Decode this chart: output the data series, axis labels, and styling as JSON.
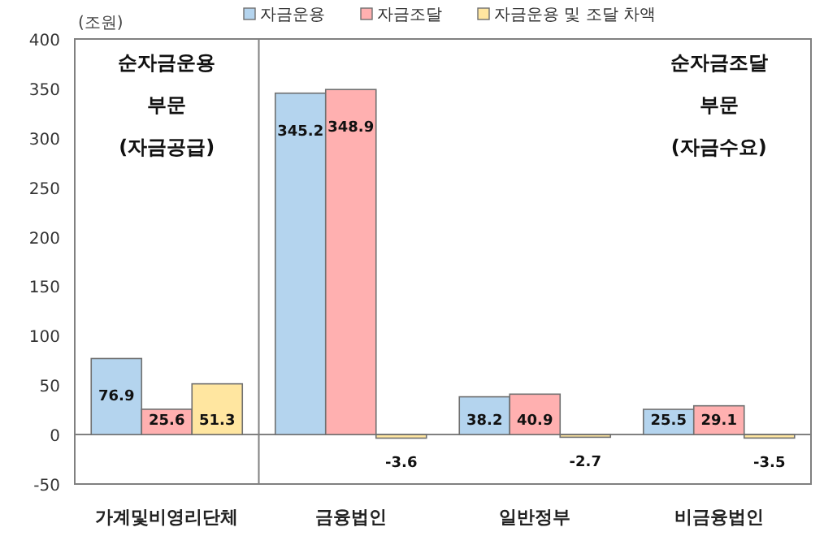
{
  "chart_data": {
    "type": "bar",
    "ylabel": "(조원)",
    "categories": [
      "가계및비영리단체",
      "금융법인",
      "일반정부",
      "비금융법인"
    ],
    "series": [
      {
        "name": "자금운용",
        "color": "#b4d4ee",
        "values": [
          76.9,
          345.2,
          38.2,
          25.5
        ]
      },
      {
        "name": "자금조달",
        "color": "#ffb0b0",
        "values": [
          25.6,
          348.9,
          40.9,
          29.1
        ]
      },
      {
        "name": "자금운용 및 조달 차액",
        "color": "#ffe6a0",
        "values": [
          51.3,
          -3.6,
          -2.7,
          -3.5
        ]
      }
    ],
    "ylim": [
      -50,
      400
    ],
    "yticks": [
      -50,
      0,
      50,
      100,
      150,
      200,
      250,
      300,
      350,
      400
    ],
    "data_labels": true,
    "legend": "top",
    "annotations": [
      "순자금운용\n부문\n(자금공급)",
      "순자금조달\n부문\n(자금수요)"
    ]
  }
}
